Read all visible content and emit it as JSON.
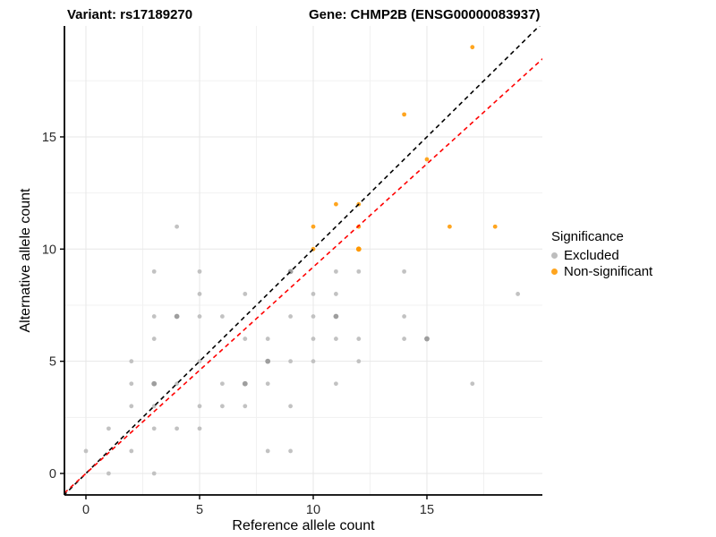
{
  "chart_data": {
    "type": "scatter",
    "title_left": "Variant: rs17189270",
    "title_right": "Gene: CHMP2B (ENSG00000083937)",
    "xlabel": "Reference allele count",
    "ylabel": "Alternative allele count",
    "xlim": [
      -0.95,
      19.95
    ],
    "ylim": [
      -0.95,
      19.95
    ],
    "x_ticks": [
      "0",
      "5",
      "10",
      "15"
    ],
    "x_tick_values": [
      0,
      5,
      10,
      15
    ],
    "y_ticks": [
      "0",
      "5",
      "10",
      "15"
    ],
    "y_tick_values": [
      0,
      5,
      10,
      15
    ],
    "x_minor": [
      2.5,
      7.5,
      12.5,
      17.5
    ],
    "y_minor": [
      2.5,
      7.5,
      12.5,
      17.5
    ],
    "grid": true,
    "legend": {
      "title": "Significance",
      "items": [
        {
          "label": "Excluded",
          "color": "#BDBDBD"
        },
        {
          "label": "Non-significant",
          "color": "#FFA51F"
        }
      ]
    },
    "series": [
      {
        "name": "Excluded",
        "color": "#C2C2C2",
        "dark_color": "#9E9E9E",
        "points": [
          [
            0,
            1
          ],
          [
            1,
            0
          ],
          [
            1,
            2
          ],
          [
            2,
            1
          ],
          [
            2,
            3
          ],
          [
            2,
            4
          ],
          [
            2,
            5
          ],
          [
            3,
            0
          ],
          [
            3,
            2
          ],
          [
            3,
            3
          ],
          [
            3,
            4,
            1
          ],
          [
            3,
            6
          ],
          [
            3,
            7
          ],
          [
            3,
            9
          ],
          [
            4,
            2
          ],
          [
            4,
            4
          ],
          [
            4,
            7,
            1
          ],
          [
            4,
            11
          ],
          [
            5,
            2
          ],
          [
            5,
            3
          ],
          [
            5,
            5
          ],
          [
            5,
            7
          ],
          [
            5,
            8
          ],
          [
            5,
            9
          ],
          [
            6,
            3
          ],
          [
            6,
            4
          ],
          [
            6,
            7
          ],
          [
            7,
            3
          ],
          [
            7,
            4,
            1
          ],
          [
            7,
            6
          ],
          [
            7,
            8
          ],
          [
            8,
            1
          ],
          [
            8,
            4
          ],
          [
            8,
            5,
            1
          ],
          [
            8,
            6
          ],
          [
            9,
            1
          ],
          [
            9,
            3
          ],
          [
            9,
            5
          ],
          [
            9,
            7
          ],
          [
            9,
            9,
            1
          ],
          [
            10,
            5
          ],
          [
            10,
            6
          ],
          [
            10,
            7
          ],
          [
            10,
            8
          ],
          [
            11,
            4
          ],
          [
            11,
            6
          ],
          [
            11,
            7,
            1
          ],
          [
            11,
            8
          ],
          [
            11,
            9
          ],
          [
            12,
            5
          ],
          [
            12,
            6
          ],
          [
            12,
            9
          ],
          [
            14,
            6
          ],
          [
            14,
            7
          ],
          [
            14,
            9
          ],
          [
            15,
            6,
            1
          ],
          [
            17,
            4
          ],
          [
            19,
            8
          ]
        ]
      },
      {
        "name": "Non-significant",
        "color": "#FFA51F",
        "dark_color": "#FF9800",
        "points": [
          [
            10,
            10
          ],
          [
            10,
            11
          ],
          [
            11,
            12
          ],
          [
            12,
            10,
            1
          ],
          [
            12,
            11
          ],
          [
            12,
            12
          ],
          [
            14,
            16
          ],
          [
            15,
            14
          ],
          [
            16,
            11
          ],
          [
            17,
            19
          ],
          [
            18,
            11
          ]
        ]
      }
    ],
    "lines": [
      {
        "name": "identity-line",
        "style": "dashed",
        "color": "#000000",
        "slope": 1,
        "intercept": 0
      },
      {
        "name": "regression-line",
        "style": "dashed",
        "color": "#FF0000",
        "slope": 0.92,
        "intercept": 0
      }
    ],
    "colors": {
      "grid_major": "#E7E7E7",
      "grid_minor": "#F1F1F1",
      "axis_line": "#000000",
      "tick_label": "#2B2B2B"
    }
  }
}
